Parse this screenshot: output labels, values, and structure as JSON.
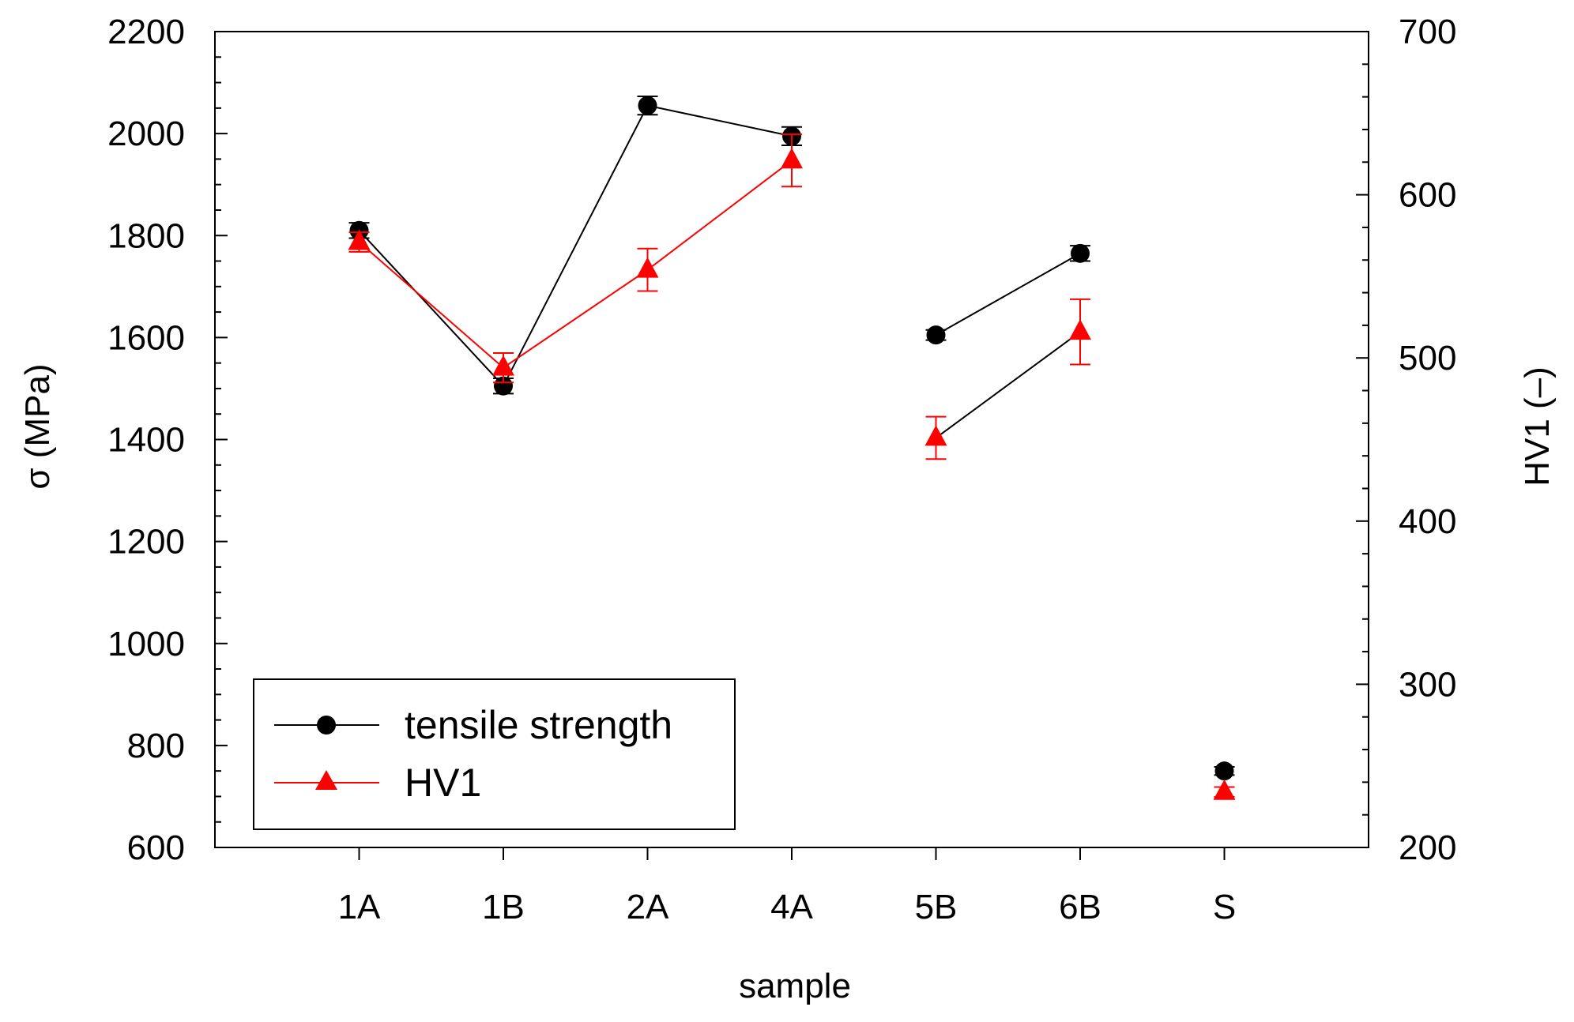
{
  "chart_data": {
    "type": "line",
    "xlabel": "sample",
    "ylabel_left": "σ (MPa)",
    "ylabel_right": "HV1 (–)",
    "categories": [
      "1A",
      "1B",
      "2A",
      "4A",
      "5B",
      "6B",
      "S"
    ],
    "ylim_left": [
      600,
      2200
    ],
    "ylim_right": [
      200,
      700
    ],
    "yticks_left": [
      600,
      800,
      1000,
      1200,
      1400,
      1600,
      1800,
      2000,
      2200
    ],
    "yticks_right": [
      200,
      300,
      400,
      500,
      600,
      700
    ],
    "grid": false,
    "legend_position": "bottom-left",
    "series": [
      {
        "name": "tensile strength",
        "axis": "left",
        "color": "#000000",
        "marker": "circle",
        "values": [
          1810,
          1505,
          2055,
          1995,
          1605,
          1765,
          750
        ],
        "errors": [
          15,
          15,
          18,
          18,
          10,
          15,
          8
        ],
        "connect_segments": [
          [
            0,
            1,
            2,
            3
          ],
          [
            4,
            5
          ]
        ]
      },
      {
        "name": "HV1",
        "axis": "right",
        "color": "#ff0000",
        "line_color": [
          "#ff0000",
          "#000000"
        ],
        "marker": "triangle",
        "values": [
          571,
          494,
          554,
          621,
          451,
          516,
          234
        ],
        "errors": [
          6,
          9,
          13,
          16,
          13,
          20,
          3
        ],
        "connect_segments": [
          [
            0,
            1,
            2,
            3
          ],
          [
            4,
            5
          ]
        ]
      }
    ]
  }
}
